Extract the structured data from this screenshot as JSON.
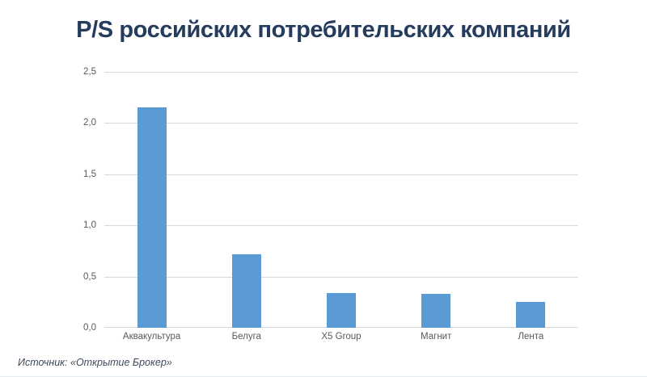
{
  "chart_data": {
    "type": "bar",
    "title": "P/S российских потребительских компаний",
    "categories": [
      "Аквакультура",
      "Белуга",
      "X5 Group",
      "Магнит",
      "Лента"
    ],
    "values": [
      2.15,
      0.72,
      0.34,
      0.33,
      0.25
    ],
    "xlabel": "",
    "ylabel": "",
    "ylim": [
      0,
      2.5
    ],
    "yticks": [
      0,
      0.5,
      1,
      1.5,
      2,
      2.5
    ],
    "ytick_labels": [
      "0,0",
      "0,5",
      "1,0",
      "1,5",
      "2,0",
      "2,5"
    ],
    "grid": true,
    "legend_position": "none",
    "bar_color": "#5b9bd5"
  },
  "colors": {
    "title": "#263c5e",
    "axis_label": "#595959",
    "gridline": "#d9d9d9",
    "bar": "#5b9bd5",
    "source_text": "#3e4a5c"
  },
  "footer": {
    "source": "Источник: «Открытие Брокер»"
  }
}
